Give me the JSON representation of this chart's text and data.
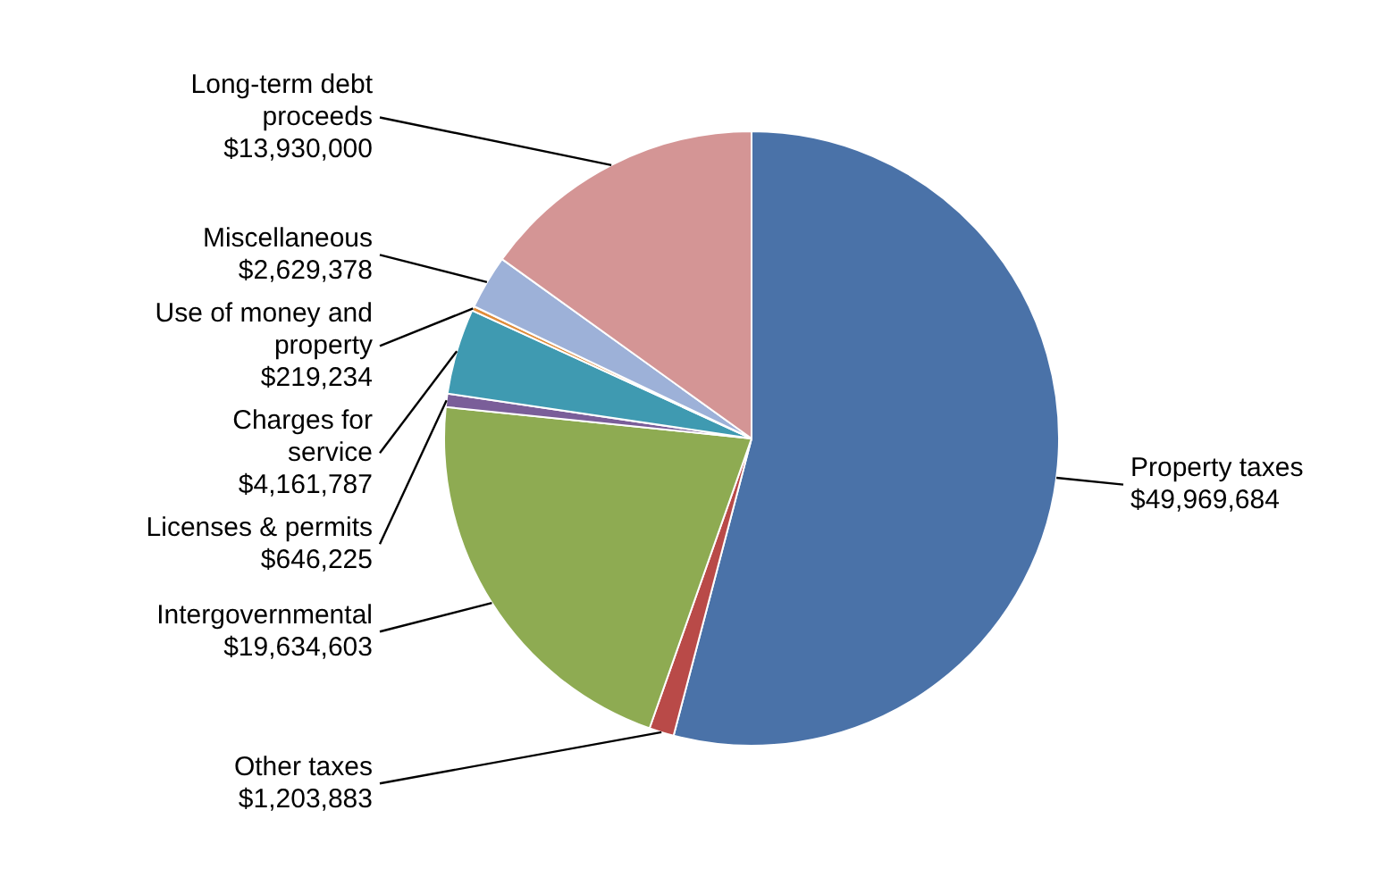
{
  "chart_data": {
    "type": "pie",
    "categories": [
      "Property taxes",
      "Other taxes",
      "Intergovernmental",
      "Licenses & permits",
      "Charges for service",
      "Use of money and property",
      "Miscellaneous",
      "Long-term debt proceeds"
    ],
    "values": [
      49969684,
      1203883,
      19634603,
      646225,
      4161787,
      219234,
      2629378,
      13930000
    ],
    "value_labels": [
      "$49,969,684",
      "$1,203,883",
      "$19,634,603",
      "$646,225",
      "$4,161,787",
      "$219,234",
      "$2,629,378",
      "$13,930,000"
    ],
    "colors": [
      "#4a72a8",
      "#b94a48",
      "#8eab52",
      "#7a5e99",
      "#3f9ab1",
      "#e08c3a",
      "#9db1d8",
      "#d49595"
    ],
    "legend": false
  }
}
